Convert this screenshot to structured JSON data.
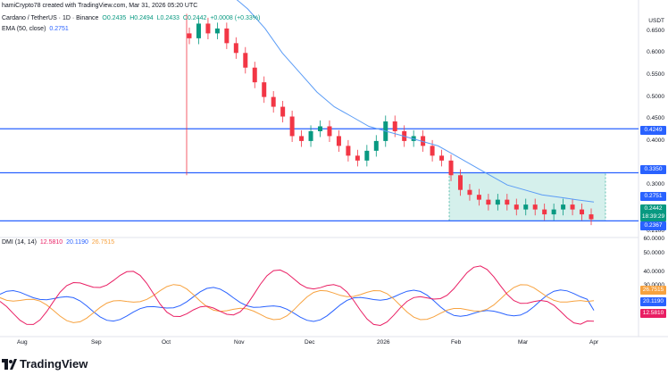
{
  "header": {
    "attribution": "hamiCrypto78 created with TradingView.com, Mar 31, 2026 05:20 UTC",
    "symbol": "Cardano / TetherUS · 1D · Binance",
    "ohlc_o": "O0.2435",
    "ohlc_h": "H0.2494",
    "ohlc_l": "L0.2433",
    "ohlc_c": "C0.2442",
    "ohlc_change": "+0.0008 (+0.33%)",
    "ema_label": "EMA (50, close)",
    "ema_value": "0.2751",
    "dmi_label": "DMI (14, 14)",
    "dmi_v1": "12.5810",
    "dmi_v2": "20.1190",
    "dmi_v3": "26.7515"
  },
  "price_axis": {
    "currency": "USDT",
    "ticks": [
      "0.6500",
      "0.6000",
      "0.5500",
      "0.5000",
      "0.4500",
      "0.4000",
      "0.3000",
      "0.2100"
    ]
  },
  "price_tags": {
    "level_1": "0.4249",
    "level_2": "0.3350",
    "ema": "0.2751",
    "last_price": "0.2442",
    "countdown": "18:39:29",
    "level_3": "0.2367"
  },
  "dmi_axis": {
    "ticks": [
      "60.0000",
      "50.0000",
      "40.0000",
      "30.0000",
      "20.0000",
      "10.0000"
    ],
    "tag_v3": "26.7515",
    "tag_v2": "20.1190",
    "tag_v1": "12.5810"
  },
  "time_axis": [
    "Aug",
    "Sep",
    "Oct",
    "Nov",
    "Dec",
    "2026",
    "Feb",
    "Mar",
    "Apr"
  ],
  "footer": {
    "brand": "TradingView"
  },
  "colors": {
    "up": "#089981",
    "down": "#f23645",
    "ema": "#5b9cf6",
    "level": "#2962ff",
    "zone": "#b2e4dc",
    "dmi_plus": "#2962ff",
    "dmi_minus": "#f7a23f",
    "adx": "#e91e63"
  },
  "chart_data": {
    "type": "candlestick",
    "title": "Cardano / TetherUS · 1D · Binance",
    "ylim": [
      0.21,
      0.67
    ],
    "x": [
      "Aug",
      "Sep",
      "Oct",
      "Nov",
      "Dec",
      "2026",
      "Feb",
      "Mar",
      "Apr"
    ],
    "horizontal_levels": [
      0.4249,
      0.335,
      0.2367
    ],
    "approx_closes": [
      0.61,
      0.64,
      0.62,
      0.63,
      0.6,
      0.58,
      0.55,
      0.52,
      0.49,
      0.47,
      0.45,
      0.41,
      0.4,
      0.42,
      0.43,
      0.41,
      0.39,
      0.37,
      0.36,
      0.38,
      0.4,
      0.44,
      0.42,
      0.4,
      0.41,
      0.39,
      0.37,
      0.36,
      0.33,
      0.3,
      0.29,
      0.28,
      0.27,
      0.28,
      0.27,
      0.26,
      0.27,
      0.26,
      0.25,
      0.26,
      0.27,
      0.26,
      0.25,
      0.24
    ],
    "ema50_points": [
      0.7,
      0.67,
      0.63,
      0.58,
      0.54,
      0.5,
      0.47,
      0.45,
      0.43,
      0.42,
      0.41,
      0.4,
      0.39,
      0.37,
      0.35,
      0.33,
      0.31,
      0.3,
      0.29,
      0.285,
      0.28,
      0.2751
    ],
    "dmi": {
      "plus_di_last": 20.119,
      "minus_di_last": 26.7515,
      "adx_last": 12.581
    }
  }
}
